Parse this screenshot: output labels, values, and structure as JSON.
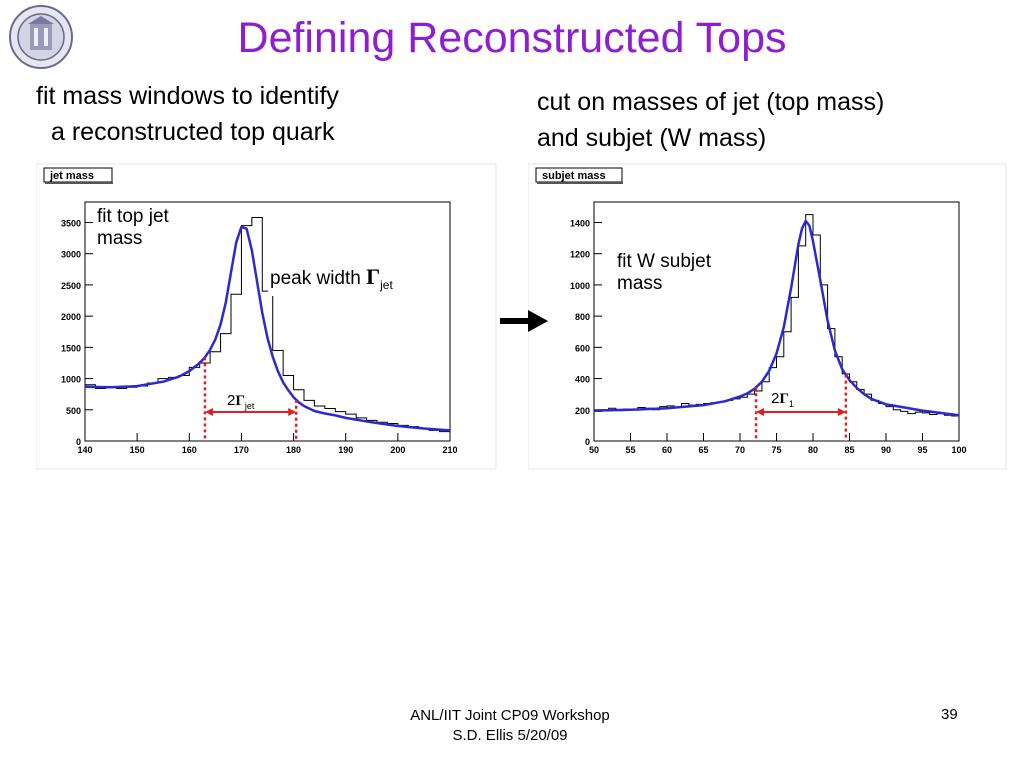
{
  "title": "Defining Reconstructed Tops",
  "left_text": [
    "fit mass windows to identify",
    "a reconstructed top quark"
  ],
  "right_text": [
    "cut on masses of jet (top mass)",
    "and subjet (W mass)"
  ],
  "annotations": {
    "left_fit": [
      "fit top jet",
      "mass"
    ],
    "peak_width_prefix": "peak width ",
    "gamma": "Γ",
    "jet_sub": "jet",
    "two": "2",
    "right_fit": [
      "fit W subjet",
      "mass"
    ],
    "one_sub": "1"
  },
  "footer": [
    "ANL/IIT Joint CP09 Workshop",
    "S.D. Ellis 5/20/09"
  ],
  "page_number": "39",
  "icons": {
    "logo": "university-seal-icon",
    "arrow": "right-arrow-icon"
  },
  "colors": {
    "title": "#8e1fd0",
    "fit_curve": "#2a2ad0",
    "window": "#e02020",
    "histogram": "#000000"
  },
  "chart_data": [
    {
      "type": "line",
      "title": "jet mass",
      "xlabel": "",
      "ylabel": "",
      "xlim": [
        140,
        210
      ],
      "ylim": [
        0,
        3700
      ],
      "xticks": [
        140,
        150,
        160,
        170,
        180,
        190,
        200,
        210
      ],
      "yticks": [
        0,
        500,
        1000,
        1500,
        2000,
        2500,
        3000,
        3500
      ],
      "window": [
        163,
        180.5
      ],
      "histogram": {
        "name": "jet mass",
        "bin_edges": [
          140,
          142,
          144,
          146,
          148,
          150,
          152,
          154,
          156,
          158,
          160,
          162,
          164,
          166,
          168,
          170,
          172,
          174,
          176,
          178,
          180,
          182,
          184,
          186,
          188,
          190,
          192,
          194,
          196,
          198,
          200,
          202,
          204,
          206,
          208,
          210
        ],
        "values": [
          900,
          840,
          860,
          840,
          860,
          880,
          930,
          1000,
          1020,
          1050,
          1180,
          1250,
          1430,
          1720,
          2350,
          3450,
          3580,
          2400,
          1450,
          1050,
          820,
          650,
          560,
          520,
          470,
          430,
          370,
          330,
          300,
          280,
          250,
          230,
          200,
          170,
          150
        ]
      },
      "fit": {
        "name": "fit",
        "x": [
          140,
          145,
          150,
          155,
          158,
          160,
          162,
          163,
          164,
          165,
          166,
          167,
          168,
          169,
          170,
          171,
          172,
          173,
          174,
          175,
          176,
          177,
          178,
          179,
          180,
          181,
          182,
          184,
          186,
          188,
          190,
          195,
          200,
          205,
          210
        ],
        "y": [
          870,
          860,
          880,
          950,
          1030,
          1120,
          1250,
          1340,
          1460,
          1630,
          1870,
          2220,
          2700,
          3180,
          3430,
          3400,
          3050,
          2550,
          2050,
          1650,
          1350,
          1120,
          940,
          810,
          700,
          620,
          560,
          480,
          440,
          410,
          370,
          300,
          240,
          200,
          170
        ]
      }
    },
    {
      "type": "line",
      "title": "subjet mass",
      "xlabel": "",
      "ylabel": "",
      "xlim": [
        50,
        100
      ],
      "ylim": [
        0,
        1480
      ],
      "xticks": [
        50,
        55,
        60,
        65,
        70,
        75,
        80,
        85,
        90,
        95,
        100
      ],
      "yticks": [
        0,
        200,
        400,
        600,
        800,
        1000,
        1200,
        1400
      ],
      "window": [
        72.2,
        84.5
      ],
      "histogram": {
        "name": "subjet mass",
        "bin_edges": [
          50,
          51,
          52,
          53,
          54,
          55,
          56,
          57,
          58,
          59,
          60,
          61,
          62,
          63,
          64,
          65,
          66,
          67,
          68,
          69,
          70,
          71,
          72,
          73,
          74,
          75,
          76,
          77,
          78,
          79,
          80,
          81,
          82,
          83,
          84,
          85,
          86,
          87,
          88,
          89,
          90,
          91,
          92,
          93,
          94,
          95,
          96,
          97,
          98,
          99,
          100
        ],
        "values": [
          190,
          200,
          210,
          195,
          205,
          200,
          215,
          210,
          200,
          220,
          225,
          215,
          240,
          230,
          235,
          240,
          245,
          250,
          260,
          270,
          280,
          300,
          320,
          380,
          470,
          540,
          700,
          920,
          1250,
          1450,
          1320,
          1000,
          720,
          540,
          430,
          380,
          330,
          300,
          260,
          240,
          220,
          200,
          190,
          175,
          185,
          180,
          170,
          175,
          165,
          160
        ]
      },
      "fit": {
        "name": "fit",
        "x": [
          50,
          55,
          60,
          65,
          68,
          70,
          71,
          72,
          73,
          74,
          75,
          76,
          77,
          78,
          78.5,
          79,
          79.5,
          80,
          81,
          82,
          83,
          84,
          85,
          86,
          87,
          88,
          90,
          95,
          100
        ],
        "y": [
          195,
          200,
          210,
          230,
          255,
          285,
          305,
          335,
          380,
          450,
          560,
          730,
          980,
          1260,
          1360,
          1410,
          1380,
          1280,
          1030,
          770,
          580,
          460,
          390,
          340,
          300,
          270,
          235,
          195,
          165
        ]
      }
    }
  ]
}
